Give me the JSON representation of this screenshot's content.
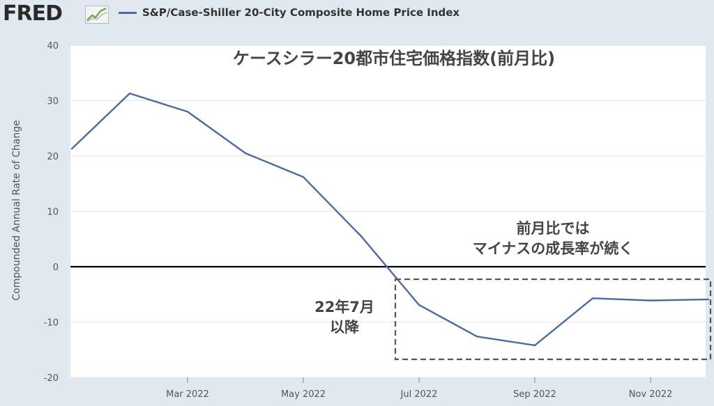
{
  "header": {
    "logo": "FRED",
    "logo_icon": "chart-trend-icon",
    "legend_label": "S&P/Case-Shiller 20-City Composite Home Price Index"
  },
  "colors": {
    "series": "#4b6b9e",
    "background": "#e1e9f0",
    "plot_bg": "#ffffff",
    "zero_line": "#000000",
    "box": "#555555"
  },
  "chart_data": {
    "type": "line",
    "title": "ケースシラー20都市住宅価格指数(前月比)",
    "ylabel": "Compounded Annual Rate of Change",
    "ylim": [
      -20,
      40
    ],
    "yticks": [
      40,
      30,
      20,
      10,
      0,
      -10,
      -20
    ],
    "grid": "horizontal",
    "legend": "top-left",
    "xticks": [
      {
        "date": "2022-03",
        "label": "Mar 2022"
      },
      {
        "date": "2022-05",
        "label": "May 2022"
      },
      {
        "date": "2022-07",
        "label": "Jul 2022"
      },
      {
        "date": "2022-09",
        "label": "Sep 2022"
      },
      {
        "date": "2022-11",
        "label": "Nov 2022"
      }
    ],
    "series": [
      {
        "name": "S&P/Case-Shiller 20-City Composite Home Price Index",
        "x": [
          "2022-01",
          "2022-02",
          "2022-03",
          "2022-04",
          "2022-05",
          "2022-06",
          "2022-07",
          "2022-08",
          "2022-09",
          "2022-10",
          "2022-11",
          "2022-12"
        ],
        "values": [
          21.3,
          31.3,
          28.0,
          20.5,
          16.2,
          5.5,
          -6.9,
          -12.6,
          -14.2,
          -5.7,
          -6.1,
          -5.9
        ]
      }
    ],
    "annotations": [
      {
        "lines": [
          "前月比では",
          "マイナスの成長率が続く"
        ]
      },
      {
        "lines": [
          "22年7月",
          "以降"
        ]
      }
    ]
  }
}
